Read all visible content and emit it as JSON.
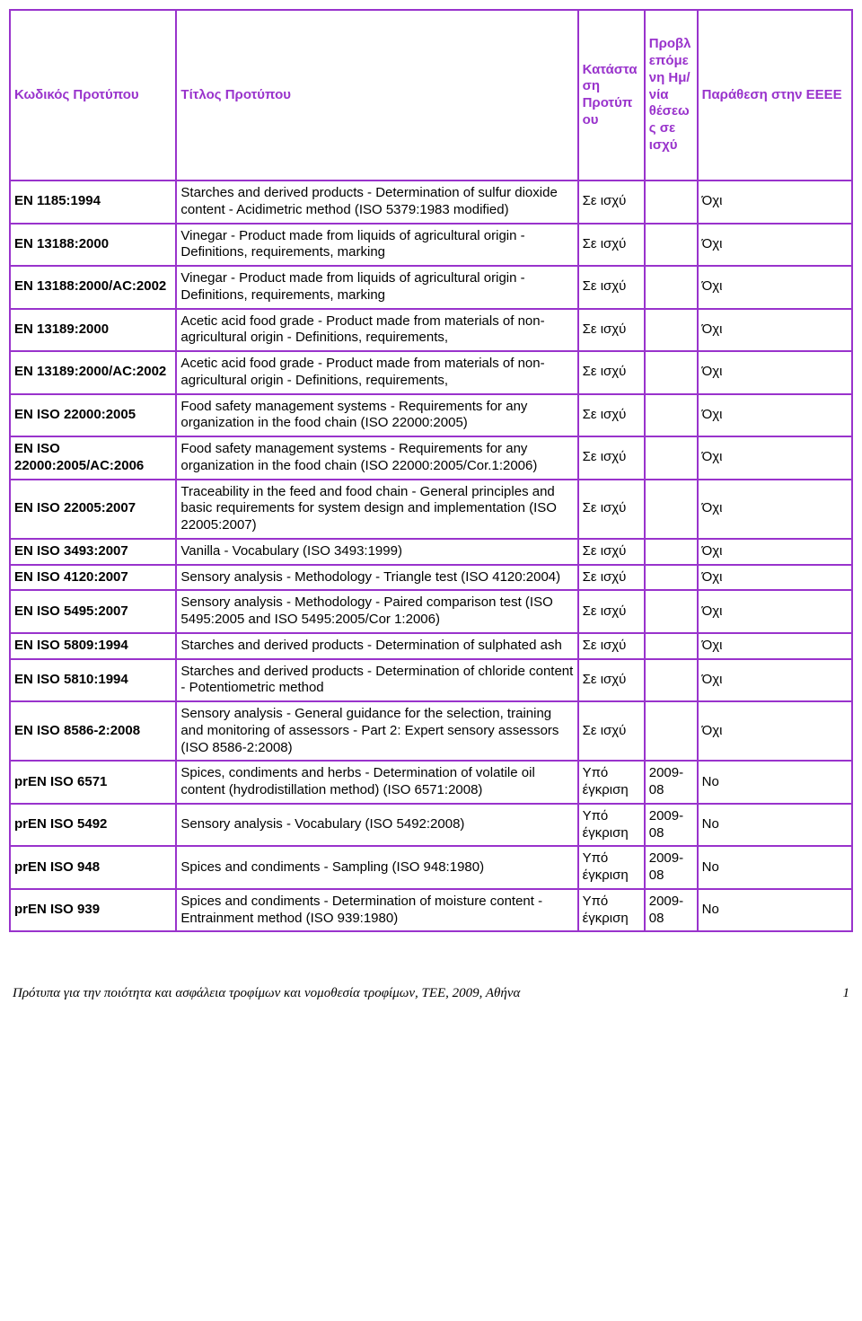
{
  "table": {
    "border_color": "#9933cc",
    "header_text_color": "#9933cc",
    "columns": [
      "Κωδικός Προτύπου",
      "Τίτλος Προτύπου",
      "Κατάσταση Προτύπου",
      "Προβλεπόμενη Ημ/νία θέσεως σε ισχύ",
      "Παράθεση στην ΕΕΕΕ"
    ],
    "rows": [
      {
        "code": "EN 1185:1994",
        "title": "Starches and derived products - Determination of sulfur dioxide content - Acidimetric method (ISO 5379:1983 modified)",
        "status": "Σε ισχύ",
        "date": "",
        "eeee": "Όχι"
      },
      {
        "code": "EN 13188:2000",
        "title": "Vinegar - Product made from liquids of agricultural origin - Definitions, requirements, marking",
        "status": "Σε ισχύ",
        "date": "",
        "eeee": "Όχι"
      },
      {
        "code": "EN 13188:2000/AC:2002",
        "title": "Vinegar - Product made from liquids of agricultural origin - Definitions, requirements, marking",
        "status": "Σε ισχύ",
        "date": "",
        "eeee": "Όχι"
      },
      {
        "code": "EN 13189:2000",
        "title": "Acetic acid food grade - Product made from materials of non-agricultural origin - Definitions, requirements,",
        "status": "Σε ισχύ",
        "date": "",
        "eeee": "Όχι"
      },
      {
        "code": "EN 13189:2000/AC:2002",
        "title": "Acetic acid food grade - Product made from materials of non-agricultural origin - Definitions, requirements,",
        "status": "Σε ισχύ",
        "date": "",
        "eeee": "Όχι"
      },
      {
        "code": "EN ISO 22000:2005",
        "title": "Food safety management systems - Requirements for any organization in the food chain (ISO 22000:2005)",
        "status": "Σε ισχύ",
        "date": "",
        "eeee": "Όχι"
      },
      {
        "code": "EN ISO 22000:2005/AC:2006",
        "title": "Food safety management systems - Requirements for any organization in the food chain (ISO 22000:2005/Cor.1:2006)",
        "status": "Σε ισχύ",
        "date": "",
        "eeee": "Όχι"
      },
      {
        "code": "EN ISO 22005:2007",
        "title": "Traceability in the feed and food chain - General principles and basic requirements for system design and implementation (ISO 22005:2007)",
        "status": "Σε ισχύ",
        "date": "",
        "eeee": "Όχι"
      },
      {
        "code": "EN ISO 3493:2007",
        "title": "Vanilla - Vocabulary (ISO 3493:1999)",
        "status": "Σε ισχύ",
        "date": "",
        "eeee": "Όχι"
      },
      {
        "code": "EN ISO 4120:2007",
        "title": "Sensory analysis - Methodology - Triangle test (ISO 4120:2004)",
        "status": "Σε ισχύ",
        "date": "",
        "eeee": "Όχι"
      },
      {
        "code": "EN ISO 5495:2007",
        "title": "Sensory analysis - Methodology - Paired comparison test (ISO 5495:2005 and ISO 5495:2005/Cor 1:2006)",
        "status": "Σε ισχύ",
        "date": "",
        "eeee": "Όχι"
      },
      {
        "code": "EN ISO 5809:1994",
        "title": "Starches and derived products - Determination of sulphated ash",
        "status": "Σε ισχύ",
        "date": "",
        "eeee": "Όχι"
      },
      {
        "code": "EN ISO 5810:1994",
        "title": "Starches and derived products - Determination of chloride content - Potentiometric method",
        "status": "Σε ισχύ",
        "date": "",
        "eeee": "Όχι"
      },
      {
        "code": "EN ISO 8586-2:2008",
        "title": "Sensory analysis - General guidance for the selection, training and monitoring of assessors - Part 2: Expert sensory assessors (ISO 8586-2:2008)",
        "status": "Σε ισχύ",
        "date": "",
        "eeee": "Όχι"
      },
      {
        "code": "prEN ISO 6571",
        "title": "Spices, condiments and herbs - Determination of volatile oil content (hydrodistillation method) (ISO 6571:2008)",
        "status": "Υπό έγκριση",
        "date": "2009-08",
        "eeee": "No"
      },
      {
        "code": "prEN ISO 5492",
        "title": "Sensory analysis - Vocabulary (ISO 5492:2008)",
        "status": "Υπό έγκριση",
        "date": "2009-08",
        "eeee": "No"
      },
      {
        "code": "prEN ISO 948",
        "title": "Spices and condiments - Sampling (ISO 948:1980)",
        "status": "Υπό έγκριση",
        "date": "2009-08",
        "eeee": "No"
      },
      {
        "code": "prEN ISO 939",
        "title": "Spices and condiments - Determination of moisture content - Entrainment method (ISO 939:1980)",
        "status": "Υπό έγκριση",
        "date": "2009-08",
        "eeee": "No"
      }
    ]
  },
  "footer": {
    "text": "Πρότυπα για την ποιότητα και ασφάλεια τροφίμων και νομοθεσία τροφίμων, ΤΕΕ, 2009, Αθήνα",
    "page": "1"
  }
}
